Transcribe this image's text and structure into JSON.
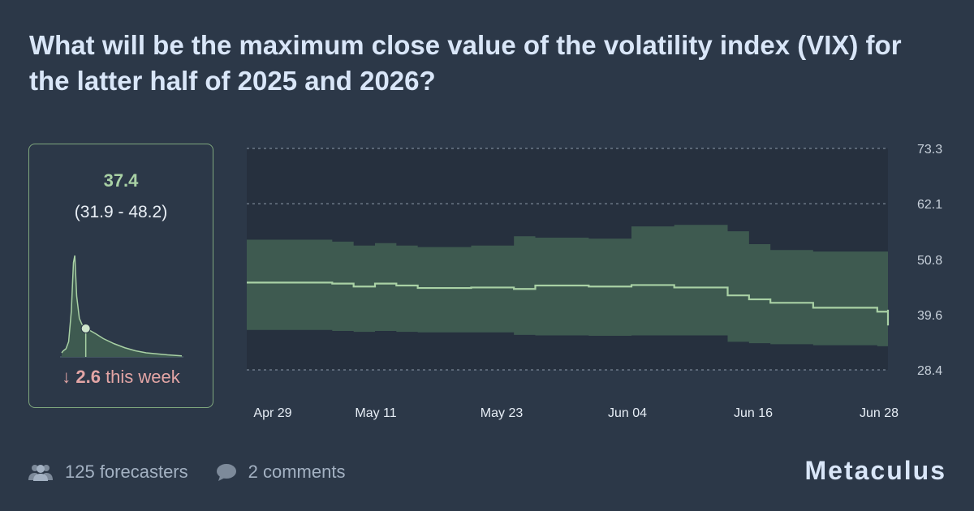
{
  "question": {
    "title": "What will be the maximum close value of the volatility index (VIX) for the latter half of 2025 and 2026?"
  },
  "summary": {
    "value": "37.4",
    "range": "(31.9 - 48.2)",
    "change_arrow": "↓",
    "change_value": "2.6",
    "change_label": "this week",
    "distribution": {
      "x": [
        28.4,
        29.0,
        30.0,
        31.0,
        32.0,
        32.8,
        33.3,
        34.0,
        35.0,
        36.0,
        37.4,
        39.0,
        41.0,
        44.0,
        48.0,
        52.0,
        56.0,
        60.0,
        64.0,
        68.0,
        73.3
      ],
      "density": [
        0.04,
        0.06,
        0.08,
        0.15,
        0.45,
        0.93,
        1.0,
        0.6,
        0.38,
        0.32,
        0.28,
        0.26,
        0.23,
        0.18,
        0.13,
        0.09,
        0.06,
        0.04,
        0.03,
        0.02,
        0.01
      ],
      "marker_x": 37.4,
      "accent_color": "#a9d1a5"
    }
  },
  "chart_data": {
    "type": "area",
    "x_ticks": [
      "Apr 29",
      "May 11",
      "May 23",
      "Jun 04",
      "Jun 16",
      "Jun 28"
    ],
    "y_ticks": [
      73.3,
      62.1,
      50.8,
      39.6,
      28.4
    ],
    "ylim": [
      28.4,
      73.3
    ],
    "ylabel": "",
    "xlabel": "",
    "grid": true,
    "x_start": "2025-04-29",
    "x_end": "2025-06-28",
    "series": [
      {
        "median": [
          [
            "2025-04-29",
            46.1
          ],
          [
            "2025-05-07",
            45.9
          ],
          [
            "2025-05-09",
            45.3
          ],
          [
            "2025-05-11",
            45.9
          ],
          [
            "2025-05-13",
            45.5
          ],
          [
            "2025-05-15",
            45.0
          ],
          [
            "2025-05-20",
            45.1
          ],
          [
            "2025-05-24",
            44.8
          ],
          [
            "2025-05-26",
            45.5
          ],
          [
            "2025-05-31",
            45.3
          ],
          [
            "2025-06-04",
            45.6
          ],
          [
            "2025-06-08",
            45.1
          ],
          [
            "2025-06-13",
            43.5
          ],
          [
            "2025-06-15",
            42.7
          ],
          [
            "2025-06-17",
            42.0
          ],
          [
            "2025-06-21",
            41.0
          ],
          [
            "2025-06-27",
            40.2
          ],
          [
            "2025-06-30",
            40.6
          ],
          [
            "2025-07-06",
            40.2
          ],
          [
            "2025-07-10",
            38.4
          ],
          [
            "2025-07-15",
            38.0
          ],
          [
            "2025-07-17",
            37.4
          ]
        ],
        "upper": [
          [
            "2025-04-29",
            54.8
          ],
          [
            "2025-05-07",
            54.4
          ],
          [
            "2025-05-09",
            53.6
          ],
          [
            "2025-05-11",
            54.1
          ],
          [
            "2025-05-13",
            53.6
          ],
          [
            "2025-05-15",
            53.3
          ],
          [
            "2025-05-20",
            53.6
          ],
          [
            "2025-05-24",
            55.5
          ],
          [
            "2025-05-26",
            55.2
          ],
          [
            "2025-05-31",
            55.0
          ],
          [
            "2025-06-04",
            57.5
          ],
          [
            "2025-06-08",
            57.8
          ],
          [
            "2025-06-13",
            56.5
          ],
          [
            "2025-06-15",
            53.9
          ],
          [
            "2025-06-17",
            52.7
          ],
          [
            "2025-06-21",
            52.4
          ],
          [
            "2025-06-27",
            52.4
          ],
          [
            "2025-06-30",
            52.8
          ],
          [
            "2025-07-06",
            51.4
          ],
          [
            "2025-07-10",
            50.6
          ],
          [
            "2025-07-15",
            49.5
          ],
          [
            "2025-07-17",
            48.2
          ]
        ],
        "lower": [
          [
            "2025-04-29",
            36.5
          ],
          [
            "2025-05-07",
            36.3
          ],
          [
            "2025-05-09",
            36.1
          ],
          [
            "2025-05-11",
            36.3
          ],
          [
            "2025-05-13",
            36.1
          ],
          [
            "2025-05-15",
            36.0
          ],
          [
            "2025-05-20",
            36.0
          ],
          [
            "2025-05-24",
            35.5
          ],
          [
            "2025-05-26",
            35.4
          ],
          [
            "2025-05-31",
            35.3
          ],
          [
            "2025-06-04",
            35.4
          ],
          [
            "2025-06-08",
            35.4
          ],
          [
            "2025-06-13",
            34.1
          ],
          [
            "2025-06-15",
            33.8
          ],
          [
            "2025-06-17",
            33.6
          ],
          [
            "2025-06-21",
            33.4
          ],
          [
            "2025-06-27",
            33.2
          ],
          [
            "2025-06-30",
            33.0
          ],
          [
            "2025-07-06",
            32.8
          ],
          [
            "2025-07-10",
            32.4
          ],
          [
            "2025-07-15",
            32.1
          ],
          [
            "2025-07-17",
            31.9
          ]
        ]
      }
    ],
    "band_color": "#3e5a50",
    "line_color": "#a9d1a5"
  },
  "footer": {
    "forecasters": "125 forecasters",
    "comments": "2 comments",
    "brand": "Metaculus"
  }
}
